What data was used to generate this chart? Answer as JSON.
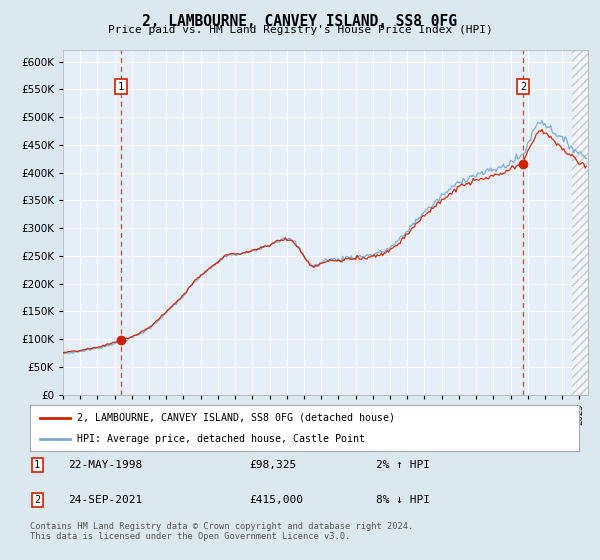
{
  "title": "2, LAMBOURNE, CANVEY ISLAND, SS8 0FG",
  "subtitle": "Price paid vs. HM Land Registry's House Price Index (HPI)",
  "legend_line1": "2, LAMBOURNE, CANVEY ISLAND, SS8 0FG (detached house)",
  "legend_line2": "HPI: Average price, detached house, Castle Point",
  "annotation1_date": "22-MAY-1998",
  "annotation1_price": "£98,325",
  "annotation1_hpi": "2% ↑ HPI",
  "annotation2_date": "24-SEP-2021",
  "annotation2_price": "£415,000",
  "annotation2_hpi": "8% ↓ HPI",
  "footer": "Contains HM Land Registry data © Crown copyright and database right 2024.\nThis data is licensed under the Open Government Licence v3.0.",
  "ylim": [
    0,
    620000
  ],
  "yticks": [
    0,
    50000,
    100000,
    150000,
    200000,
    250000,
    300000,
    350000,
    400000,
    450000,
    500000,
    550000,
    600000
  ],
  "background_color": "#dce8f0",
  "plot_bg": "#e6eff8",
  "hpi_line_color": "#7aaad0",
  "price_line_color": "#cc2200",
  "dashed_line_color": "#cc2200",
  "marker_color": "#cc2200",
  "sale1_x": 1998.38,
  "sale1_y": 98325,
  "sale2_x": 2021.72,
  "sale2_y": 415000,
  "xmin": 1995.0,
  "xmax": 2025.5
}
